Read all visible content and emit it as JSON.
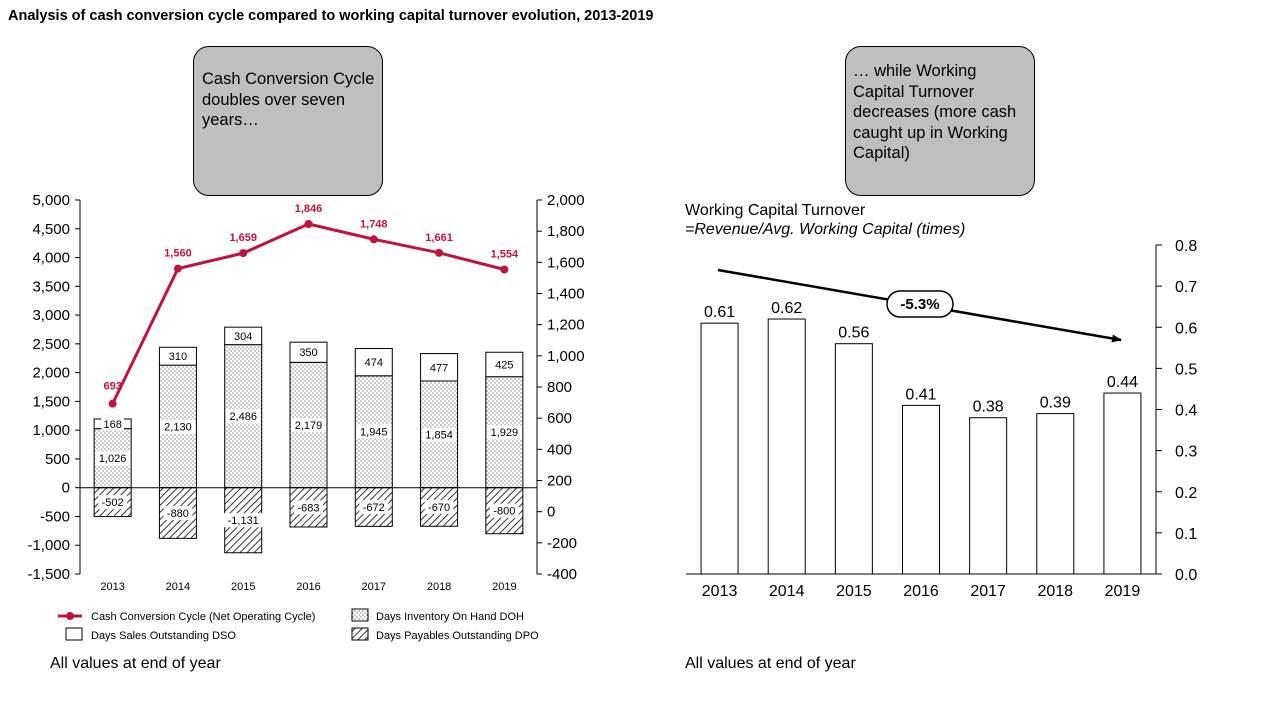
{
  "title": "Analysis of cash conversion cycle compared to working capital turnover evolution, 2013-2019",
  "callouts": {
    "left": "Cash Conversion Cycle doubles over seven years…",
    "right": "… while Working Capital Turnover decreases (more cash caught up in Working Capital)"
  },
  "footnotes": {
    "left": "All values at end of year",
    "right": "All values at end of year"
  },
  "colors": {
    "ccc_line": "#c0143c",
    "callout_fill": "#bfbfbf",
    "bar_outline": "#000000"
  },
  "chart_data": [
    {
      "type": "bar",
      "stacked": true,
      "categories": [
        "2013",
        "2014",
        "2015",
        "2016",
        "2017",
        "2018",
        "2019"
      ],
      "series": [
        {
          "name": "Days Inventory On Hand DOH",
          "axis": "left",
          "pattern": "dots",
          "values": [
            1026,
            2130,
            2486,
            2179,
            1945,
            1854,
            1929
          ]
        },
        {
          "name": "Days Sales Outstanding DSO",
          "axis": "left",
          "pattern": "solid",
          "values": [
            168,
            310,
            304,
            350,
            474,
            477,
            425
          ]
        },
        {
          "name": "Days Payables Outstanding DPO",
          "axis": "left",
          "pattern": "hatch",
          "values": [
            -502,
            -880,
            -1131,
            -683,
            -672,
            -670,
            -800
          ]
        },
        {
          "name": "Cash Conversion Cycle (Net Operating Cycle)",
          "axis": "right",
          "type": "line",
          "values": [
            693,
            1560,
            1659,
            1846,
            1748,
            1661,
            1554
          ]
        }
      ],
      "y_left": {
        "min": -1500,
        "max": 5000,
        "step": 500,
        "ticks": [
          "-1,500",
          "-1,000",
          "-500",
          "0",
          "500",
          "1,000",
          "1,500",
          "2,000",
          "2,500",
          "3,000",
          "3,500",
          "4,000",
          "4,500",
          "5,000"
        ]
      },
      "y_right": {
        "min": -400,
        "max": 2000,
        "step": 200,
        "ticks": [
          "-400",
          "-200",
          "0",
          "200",
          "400",
          "600",
          "800",
          "1,000",
          "1,200",
          "1,400",
          "1,600",
          "1,800",
          "2,000"
        ]
      },
      "legend_position": "bottom"
    },
    {
      "type": "bar",
      "title": "Working Capital Turnover",
      "subtitle": "=Revenue/Avg. Working Capital (times)",
      "categories": [
        "2013",
        "2014",
        "2015",
        "2016",
        "2017",
        "2018",
        "2019"
      ],
      "values": [
        0.61,
        0.62,
        0.56,
        0.41,
        0.38,
        0.39,
        0.44
      ],
      "value_labels": [
        "0.61",
        "0.62",
        "0.56",
        "0.41",
        "0.38",
        "0.39",
        "0.44"
      ],
      "y_right": {
        "min": 0,
        "max": 0.8,
        "step": 0.1,
        "ticks": [
          "0.0",
          "0.1",
          "0.2",
          "0.3",
          "0.4",
          "0.5",
          "0.6",
          "0.7",
          "0.8"
        ]
      },
      "trend_annotation": "-5.3%"
    }
  ]
}
